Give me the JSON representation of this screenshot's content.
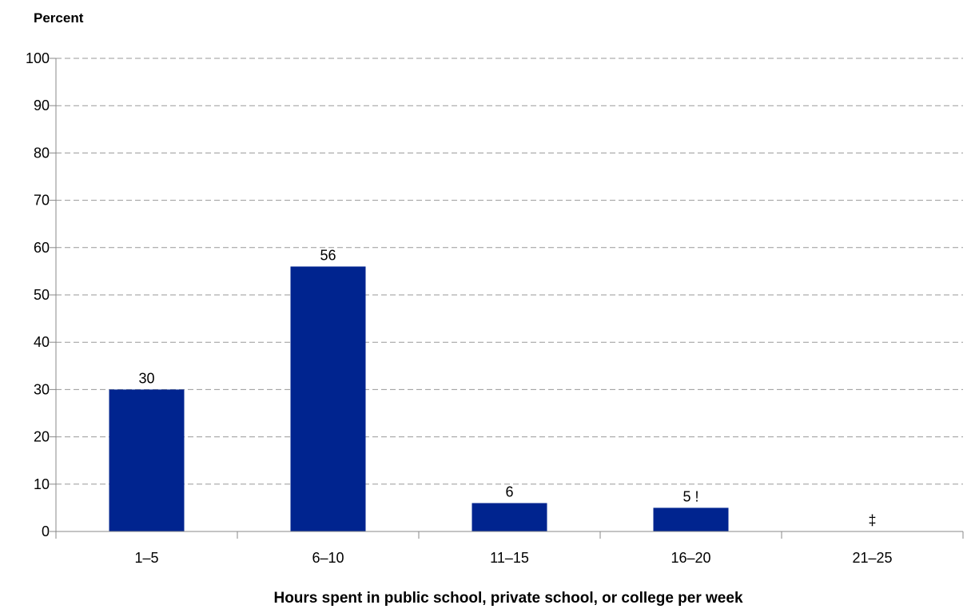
{
  "chart_data": {
    "type": "bar",
    "ylabel": "Percent",
    "xlabel": "Hours spent in public school, private school, or college per week",
    "categories": [
      "1–5",
      "6–10",
      "11–15",
      "16–20",
      "21–25"
    ],
    "values": [
      30,
      56,
      6,
      5,
      null
    ],
    "data_labels": [
      "30",
      "56",
      "6",
      "5 !",
      "‡"
    ],
    "ylim": [
      0,
      100
    ],
    "yticks": [
      0,
      10,
      20,
      30,
      40,
      50,
      60,
      70,
      80,
      90,
      100
    ],
    "ytick_labels": [
      "0",
      "10",
      "20",
      "30",
      "40",
      "50",
      "60",
      "70",
      "80",
      "90",
      "100"
    ],
    "grid": true,
    "bar_color": "#00248F",
    "grid_color": "#999999",
    "axis_color": "#888888"
  }
}
